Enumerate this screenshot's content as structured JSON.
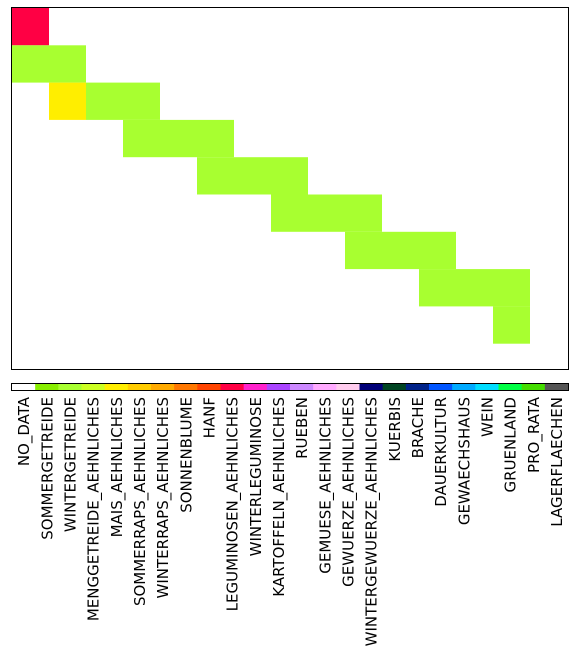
{
  "chart_data": {
    "type": "heatmap",
    "title": "",
    "xlabel": "",
    "ylabel": "",
    "grid": false,
    "grid_rows": 9,
    "grid_cols": 14,
    "cells": [
      {
        "row": 0,
        "col": 0,
        "span": 1,
        "color": "#ff0044"
      },
      {
        "row": 1,
        "col": 0,
        "span": 2,
        "color": "#a8ff30"
      },
      {
        "row": 2,
        "col": 1,
        "span": 1,
        "color": "#ffee00"
      },
      {
        "row": 2,
        "col": 2,
        "span": 2,
        "color": "#a8ff30"
      },
      {
        "row": 3,
        "col": 3,
        "span": 3,
        "color": "#a8ff30"
      },
      {
        "row": 4,
        "col": 5,
        "span": 3,
        "color": "#a8ff30"
      },
      {
        "row": 5,
        "col": 7,
        "span": 3,
        "color": "#a8ff30"
      },
      {
        "row": 6,
        "col": 9,
        "span": 3,
        "color": "#a8ff30"
      },
      {
        "row": 7,
        "col": 11,
        "span": 3,
        "color": "#a8ff30"
      },
      {
        "row": 8,
        "col": 13,
        "span": 1,
        "color": "#a8ff30"
      }
    ],
    "colorbar": {
      "labels": [
        "NO_DATA",
        "SOMMERGETREIDE",
        "WINTERGETREIDE",
        "MENGGETREIDE_AEHNLICHES",
        "MAIS_AEHNLICHES",
        "SOMMERRAPS_AEHNLICHES",
        "WINTERRAPS_AEHNLICHES",
        "SONNENBLUME",
        "HANF",
        "LEGUMINOSEN_AEHNLICHES",
        "WINTERLEGUMINOSE",
        "KARTOFFELN_AEHNLICHES",
        "RUEBEN",
        "GEMUESE_AEHNLICHES",
        "GEWUERZE_AEHNLICHES",
        "WINTERGEWUERZE_AEHNLICHES",
        "KUERBIS",
        "BRACHE",
        "DAUERKULTUR",
        "GEWAECHSHAUS",
        "WEIN",
        "GRUENLAND",
        "PRO_RATA",
        "LAGERFLAECHEN"
      ],
      "colors": [
        "#ffffff",
        "#88ee00",
        "#a8ff30",
        "#ccff22",
        "#ffee00",
        "#ffcc00",
        "#ffaa00",
        "#ff7700",
        "#ff4400",
        "#ff0044",
        "#ff22cc",
        "#aa44ff",
        "#cc88ff",
        "#ffaaff",
        "#ffccee",
        "#000077",
        "#004422",
        "#002288",
        "#0055ff",
        "#00aaff",
        "#00ddff",
        "#00ff44",
        "#44dd00",
        "#555555"
      ]
    }
  }
}
